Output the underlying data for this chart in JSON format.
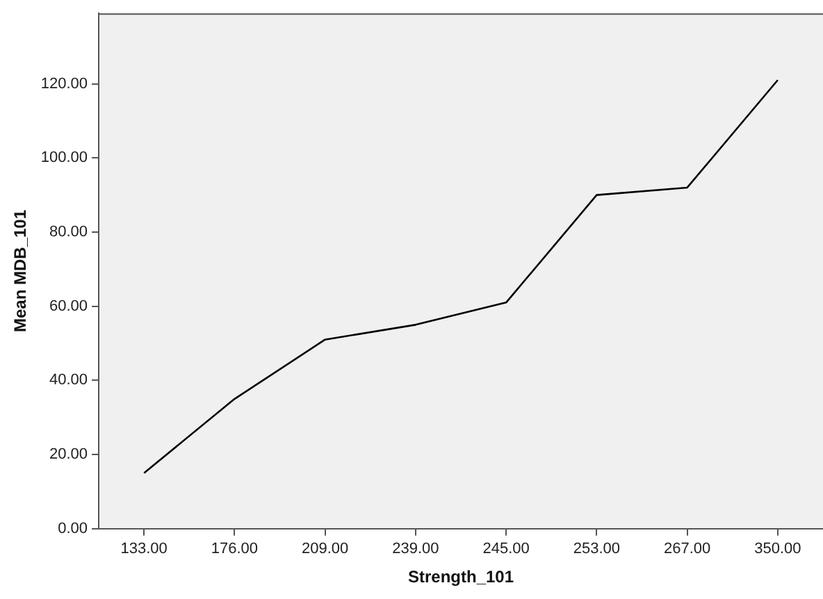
{
  "chart_data": {
    "type": "line",
    "xlabel": "Strength_101",
    "ylabel": "Mean MDB_101",
    "categories": [
      "133.00",
      "176.00",
      "209.00",
      "239.00",
      "245.00",
      "253.00",
      "267.00",
      "350.00"
    ],
    "series": [
      {
        "color": "#000000",
        "values": [
          15,
          35,
          51,
          55,
          61,
          90,
          92,
          121
        ]
      }
    ],
    "ylim": [
      0,
      139
    ],
    "yticks": [
      {
        "value": 0,
        "label": "0.00"
      },
      {
        "value": 20,
        "label": "20.00"
      },
      {
        "value": 40,
        "label": "40.00"
      },
      {
        "value": 60,
        "label": "60.00"
      },
      {
        "value": 80,
        "label": "80.00"
      },
      {
        "value": 100,
        "label": "100.00"
      },
      {
        "value": 120,
        "label": "120.00"
      }
    ],
    "grid": false,
    "legend": false,
    "marker": "none",
    "line_style": "solid"
  }
}
